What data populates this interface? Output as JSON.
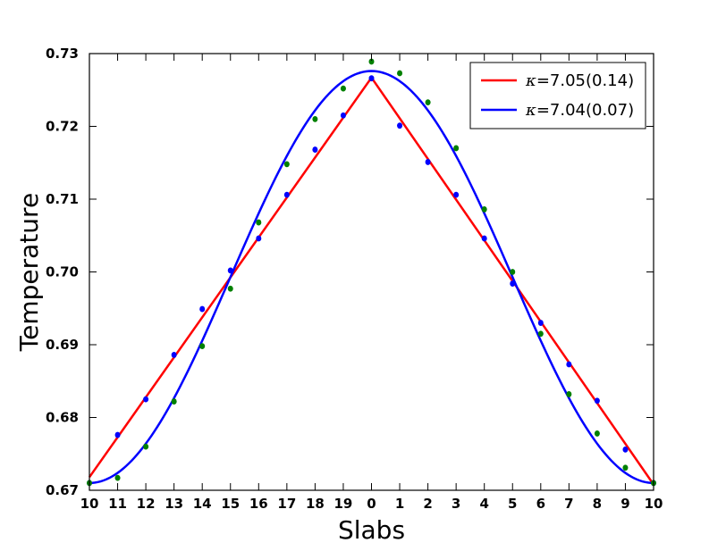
{
  "chart_data": {
    "type": "scatter",
    "xlabel": "Slabs",
    "ylabel": "Temperature",
    "ylim": [
      0.67,
      0.73
    ],
    "yticks": [
      "0.67",
      "0.68",
      "0.69",
      "0.70",
      "0.71",
      "0.72",
      "0.73"
    ],
    "categories": [
      "10",
      "11",
      "12",
      "13",
      "14",
      "15",
      "16",
      "17",
      "18",
      "19",
      "0",
      "1",
      "2",
      "3",
      "4",
      "5",
      "6",
      "7",
      "8",
      "9",
      "10"
    ],
    "grid": false,
    "legend_position": "top-right",
    "series": [
      {
        "name": "κ=7.05(0.14)",
        "legend_symbol": "κ",
        "legend_value": "=7.05(0.14)",
        "kind": "line",
        "shape": "linear",
        "color": "#ff0000",
        "endpoints": [
          0.6718,
          0.7267,
          0.6708
        ]
      },
      {
        "name": "κ=7.04(0.07)",
        "legend_symbol": "κ",
        "legend_value": "=7.04(0.07)",
        "kind": "line",
        "shape": "cosine",
        "color": "#0000ff",
        "center": 0.6993,
        "amplitude": 0.0283
      },
      {
        "kind": "points",
        "color": "#0000ff",
        "values": [
          0.671,
          0.6776,
          0.6825,
          0.6886,
          0.6949,
          0.7002,
          0.7046,
          0.7106,
          0.7168,
          0.7215,
          0.7266,
          0.7201,
          0.7151,
          0.7106,
          0.7046,
          0.6984,
          0.693,
          0.6873,
          0.6823,
          0.6756,
          0.671
        ]
      },
      {
        "kind": "points",
        "color": "#008000",
        "values": [
          0.671,
          0.6717,
          0.676,
          0.6822,
          0.6898,
          0.6977,
          0.7068,
          0.7148,
          0.721,
          0.7252,
          0.7289,
          0.7273,
          0.7233,
          0.717,
          0.7086,
          0.7,
          0.6915,
          0.6832,
          0.6778,
          0.6731,
          0.671
        ]
      }
    ]
  }
}
